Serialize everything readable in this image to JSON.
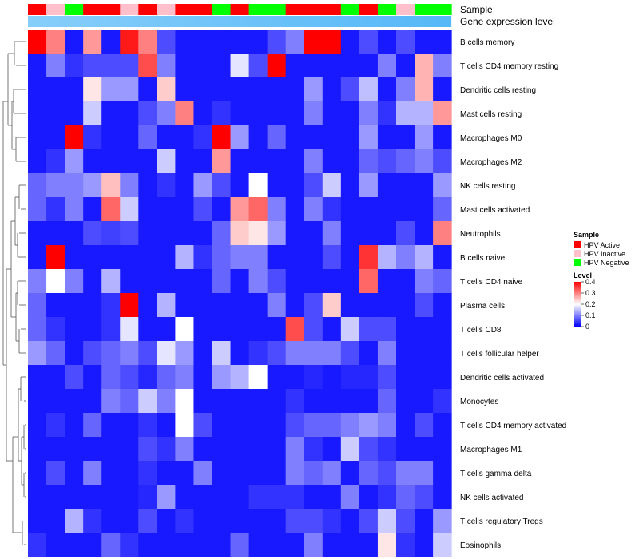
{
  "chart_data": {
    "type": "heatmap",
    "title": "",
    "annotation_tracks": [
      {
        "name": "Sample",
        "label": "Sample"
      },
      {
        "name": "Gene expression level",
        "label": "Gene expression level"
      }
    ],
    "sample_groups": [
      "Active",
      "Inactive",
      "Negative",
      "Active",
      "Active",
      "Inactive",
      "Active",
      "Inactive",
      "Active",
      "Active",
      "Negative",
      "Active",
      "Negative",
      "Negative",
      "Active",
      "Active",
      "Active",
      "Negative",
      "Active",
      "Negative",
      "Inactive",
      "Negative",
      "Negative"
    ],
    "rows": [
      "B cells memory",
      "T cells CD4 memory resting",
      "Dendritic cells resting",
      "Mast cells resting",
      "Macrophages M0",
      "Macrophages M2",
      "NK cells resting",
      "Mast cells activated",
      "Neutrophils",
      "B cells naive",
      "T cells CD4 naive",
      "Plasma cells",
      "T cells CD8",
      "T cells follicular helper",
      "Dendritic cells activated",
      "Monocytes",
      "T cells CD4 memory activated",
      "Macrophages M1",
      "T cells gamma delta",
      "NK cells activated",
      "T cells regulatory  Tregs",
      "Eosinophils"
    ],
    "values": [
      [
        0.4,
        0.3,
        0.02,
        0.28,
        0.02,
        0.38,
        0.3,
        0.06,
        0.02,
        0.02,
        0.02,
        0.02,
        0.02,
        0.06,
        0.1,
        0.4,
        0.4,
        0.02,
        0.06,
        0.02,
        0.06,
        0.02,
        0.02
      ],
      [
        0.02,
        0.1,
        0.04,
        0.06,
        0.06,
        0.06,
        0.34,
        0.1,
        0.02,
        0.02,
        0.02,
        0.18,
        0.06,
        0.4,
        0.02,
        0.02,
        0.02,
        0.02,
        0.02,
        0.1,
        0.02,
        0.26,
        0.1
      ],
      [
        0.02,
        0.02,
        0.02,
        0.22,
        0.12,
        0.12,
        0.02,
        0.24,
        0.02,
        0.02,
        0.02,
        0.02,
        0.02,
        0.02,
        0.02,
        0.12,
        0.02,
        0.06,
        0.15,
        0.02,
        0.1,
        0.26,
        0.02
      ],
      [
        0.02,
        0.02,
        0.02,
        0.16,
        0.02,
        0.02,
        0.06,
        0.1,
        0.3,
        0.02,
        0.04,
        0.02,
        0.02,
        0.02,
        0.02,
        0.1,
        0.02,
        0.02,
        0.1,
        0.04,
        0.14,
        0.14,
        0.28
      ],
      [
        0.02,
        0.02,
        0.4,
        0.04,
        0.02,
        0.02,
        0.08,
        0.02,
        0.02,
        0.04,
        0.4,
        0.12,
        0.02,
        0.08,
        0.02,
        0.02,
        0.02,
        0.02,
        0.12,
        0.02,
        0.02,
        0.12,
        0.02
      ],
      [
        0.02,
        0.04,
        0.12,
        0.02,
        0.02,
        0.02,
        0.02,
        0.16,
        0.02,
        0.02,
        0.28,
        0.02,
        0.02,
        0.02,
        0.02,
        0.1,
        0.02,
        0.02,
        0.08,
        0.06,
        0.08,
        0.1,
        0.06
      ],
      [
        0.08,
        0.1,
        0.1,
        0.12,
        0.25,
        0.1,
        0.02,
        0.04,
        0.02,
        0.12,
        0.06,
        0.02,
        0.2,
        0.02,
        0.02,
        0.06,
        0.16,
        0.02,
        0.12,
        0.02,
        0.02,
        0.02,
        0.12
      ],
      [
        0.08,
        0.04,
        0.1,
        0.02,
        0.32,
        0.16,
        0.02,
        0.02,
        0.02,
        0.06,
        0.02,
        0.28,
        0.32,
        0.1,
        0.02,
        0.1,
        0.04,
        0.02,
        0.02,
        0.02,
        0.02,
        0.02,
        0.08
      ],
      [
        0.02,
        0.02,
        0.02,
        0.06,
        0.05,
        0.06,
        0.02,
        0.02,
        0.02,
        0.02,
        0.08,
        0.24,
        0.22,
        0.12,
        0.02,
        0.02,
        0.1,
        0.02,
        0.02,
        0.02,
        0.06,
        0.02,
        0.3
      ],
      [
        0.02,
        0.4,
        0.02,
        0.02,
        0.02,
        0.02,
        0.02,
        0.02,
        0.14,
        0.04,
        0.08,
        0.1,
        0.1,
        0.02,
        0.02,
        0.02,
        0.06,
        0.02,
        0.36,
        0.14,
        0.1,
        0.14,
        0.02
      ],
      [
        0.1,
        0.2,
        0.1,
        0.02,
        0.14,
        0.02,
        0.02,
        0.02,
        0.02,
        0.02,
        0.08,
        0.02,
        0.1,
        0.06,
        0.02,
        0.02,
        0.02,
        0.02,
        0.32,
        0.02,
        0.02,
        0.1,
        0.08
      ],
      [
        0.08,
        0.02,
        0.02,
        0.02,
        0.04,
        0.4,
        0.02,
        0.14,
        0.02,
        0.02,
        0.02,
        0.02,
        0.02,
        0.1,
        0.02,
        0.06,
        0.24,
        0.02,
        0.02,
        0.02,
        0.02,
        0.06,
        0.02
      ],
      [
        0.08,
        0.04,
        0.02,
        0.02,
        0.04,
        0.18,
        0.02,
        0.02,
        0.2,
        0.02,
        0.02,
        0.02,
        0.02,
        0.02,
        0.34,
        0.06,
        0.02,
        0.16,
        0.06,
        0.06,
        0.02,
        0.02,
        0.02
      ],
      [
        0.12,
        0.08,
        0.02,
        0.06,
        0.08,
        0.1,
        0.06,
        0.18,
        0.12,
        0.02,
        0.16,
        0.02,
        0.04,
        0.06,
        0.1,
        0.1,
        0.1,
        0.06,
        0.02,
        0.1,
        0.02,
        0.02,
        0.02
      ],
      [
        0.02,
        0.02,
        0.06,
        0.02,
        0.08,
        0.06,
        0.03,
        0.08,
        0.1,
        0.02,
        0.12,
        0.14,
        0.2,
        0.02,
        0.02,
        0.03,
        0.02,
        0.03,
        0.03,
        0.06,
        0.02,
        0.02,
        0.02
      ],
      [
        0.02,
        0.02,
        0.02,
        0.02,
        0.1,
        0.08,
        0.16,
        0.1,
        0.2,
        0.02,
        0.02,
        0.02,
        0.02,
        0.02,
        0.04,
        0.02,
        0.02,
        0.02,
        0.02,
        0.08,
        0.02,
        0.02,
        0.04
      ],
      [
        0.02,
        0.04,
        0.02,
        0.08,
        0.02,
        0.02,
        0.04,
        0.02,
        0.2,
        0.06,
        0.02,
        0.02,
        0.02,
        0.02,
        0.06,
        0.08,
        0.08,
        0.1,
        0.12,
        0.1,
        0.02,
        0.06,
        0.02
      ],
      [
        0.02,
        0.02,
        0.02,
        0.02,
        0.02,
        0.02,
        0.06,
        0.04,
        0.1,
        0.02,
        0.02,
        0.02,
        0.02,
        0.02,
        0.1,
        0.04,
        0.02,
        0.16,
        0.06,
        0.04,
        0.02,
        0.02,
        0.02
      ],
      [
        0.02,
        0.06,
        0.02,
        0.1,
        0.02,
        0.02,
        0.04,
        0.02,
        0.02,
        0.1,
        0.02,
        0.02,
        0.02,
        0.02,
        0.1,
        0.08,
        0.1,
        0.02,
        0.08,
        0.06,
        0.1,
        0.1,
        0.02
      ],
      [
        0.02,
        0.02,
        0.02,
        0.02,
        0.02,
        0.02,
        0.03,
        0.12,
        0.02,
        0.02,
        0.02,
        0.02,
        0.04,
        0.04,
        0.04,
        0.02,
        0.02,
        0.1,
        0.02,
        0.04,
        0.08,
        0.06,
        0.02
      ],
      [
        0.02,
        0.02,
        0.14,
        0.04,
        0.02,
        0.02,
        0.06,
        0.02,
        0.04,
        0.02,
        0.02,
        0.02,
        0.02,
        0.02,
        0.06,
        0.06,
        0.04,
        0.02,
        0.06,
        0.16,
        0.06,
        0.02,
        0.12
      ],
      [
        0.04,
        0.02,
        0.02,
        0.02,
        0.08,
        0.04,
        0.02,
        0.02,
        0.02,
        0.02,
        0.02,
        0.08,
        0.02,
        0.02,
        0.02,
        0.1,
        0.02,
        0.02,
        0.02,
        0.22,
        0.04,
        0.02,
        0.16
      ]
    ],
    "color_scale": {
      "min": 0,
      "max": 0.4,
      "low": "#0000ff",
      "mid": "#ffffff",
      "high": "#ff0000",
      "mid_value": 0.2
    },
    "legend_sample": {
      "title": "Sample",
      "entries": [
        {
          "label": "HPV Active",
          "color": "#ff0000"
        },
        {
          "label": "HPV Inactive",
          "color": "#ffc0cb"
        },
        {
          "label": "HPV Negative",
          "color": "#00ff00"
        }
      ]
    },
    "legend_level": {
      "title": "Level",
      "ticks": [
        "0",
        "0.1",
        "0.2",
        "0.3",
        "0.4"
      ]
    },
    "group_colors": {
      "Active": "#ff0000",
      "Inactive": "#ffc0cb",
      "Negative": "#00ff00"
    },
    "expression_bar_color": "#87cefa",
    "expression_bar_color_2": "#55b8f7"
  }
}
